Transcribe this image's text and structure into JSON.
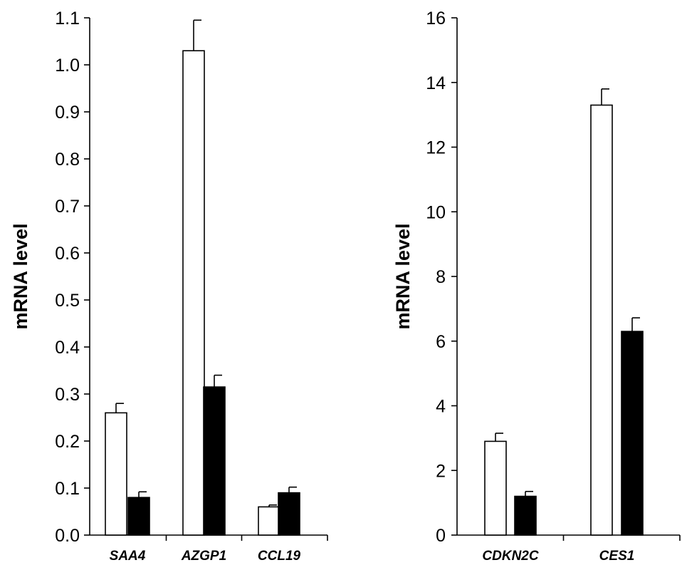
{
  "colors": {
    "series_0": "#ffffff",
    "series_1": "#000000",
    "outline": "#000000",
    "background": "#ffffff"
  },
  "chart_data": [
    {
      "type": "bar",
      "ylabel": "mRNA level",
      "xlabel": "",
      "ylim": [
        0.0,
        1.1
      ],
      "yticks": [
        "0.0",
        "0.1",
        "0.2",
        "0.3",
        "0.4",
        "0.5",
        "0.6",
        "0.7",
        "0.8",
        "0.9",
        "1.0",
        "1.1"
      ],
      "categories": [
        "SAA4",
        "AZGP1",
        "CCL19"
      ],
      "series": [
        {
          "values": [
            0.26,
            1.03,
            0.06
          ],
          "errors": [
            0.02,
            0.065,
            0.004
          ],
          "color": "#ffffff"
        },
        {
          "values": [
            0.08,
            0.315,
            0.09
          ],
          "errors": [
            0.012,
            0.025,
            0.012
          ],
          "color": "#000000"
        }
      ],
      "grid": false,
      "legend": "none"
    },
    {
      "type": "bar",
      "ylabel": "mRNA level",
      "xlabel": "",
      "ylim": [
        0,
        16
      ],
      "yticks": [
        "0",
        "2",
        "4",
        "6",
        "8",
        "10",
        "12",
        "14",
        "16"
      ],
      "categories": [
        "CDKN2C",
        "CES1"
      ],
      "series": [
        {
          "values": [
            2.9,
            13.3
          ],
          "errors": [
            0.25,
            0.5
          ],
          "color": "#ffffff"
        },
        {
          "values": [
            1.2,
            6.3
          ],
          "errors": [
            0.15,
            0.42
          ],
          "color": "#000000"
        }
      ],
      "grid": false,
      "legend": "none"
    }
  ]
}
